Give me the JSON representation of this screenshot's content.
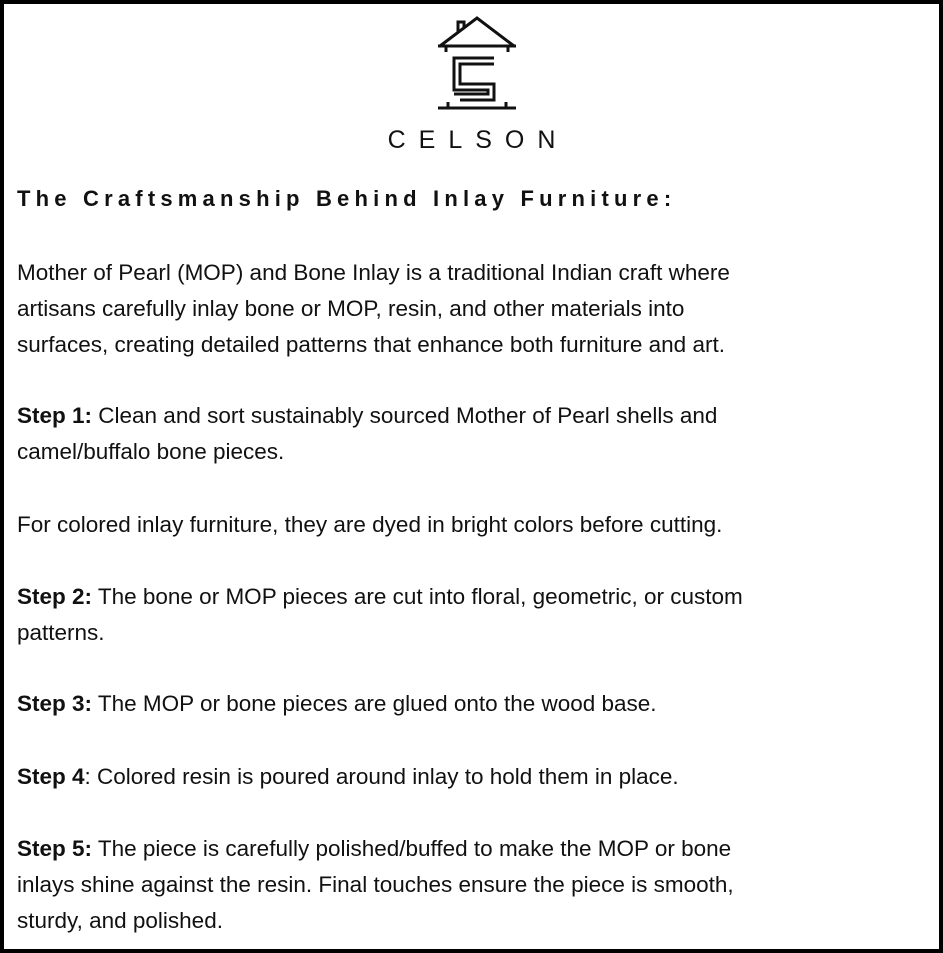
{
  "brand": {
    "name": "CELSON",
    "logo_icon": "house-s-logo-icon"
  },
  "heading": "The Craftsmanship Behind Inlay Furniture:",
  "intro": {
    "lines": [
      "Mother of Pearl (MOP) and Bone Inlay is a traditional Indian craft where",
      "artisans carefully inlay bone or MOP, resin, and other materials into",
      "surfaces, creating detailed patterns that enhance both furniture and art."
    ]
  },
  "steps": [
    {
      "label": "Step 1:",
      "lines": [
        " Clean and sort sustainably sourced Mother of Pearl shells and",
        "camel/buffalo bone pieces."
      ]
    },
    {
      "label": "",
      "lines": [
        "For colored inlay furniture, they are dyed in bright colors before cutting."
      ]
    },
    {
      "label": "Step 2:",
      "lines": [
        " The bone or MOP pieces are cut into floral, geometric, or custom",
        "patterns."
      ]
    },
    {
      "label": "Step 3:",
      "lines": [
        " The MOP or bone pieces are glued onto the wood base."
      ]
    },
    {
      "label": "Step 4",
      "lines": [
        ": Colored resin is poured around inlay to hold them in place."
      ]
    },
    {
      "label": "Step 5:",
      "lines": [
        " The piece is carefully polished/buffed to make the MOP or bone",
        "inlays shine against the resin. Final touches ensure the piece is smooth,",
        "sturdy, and polished."
      ]
    }
  ]
}
